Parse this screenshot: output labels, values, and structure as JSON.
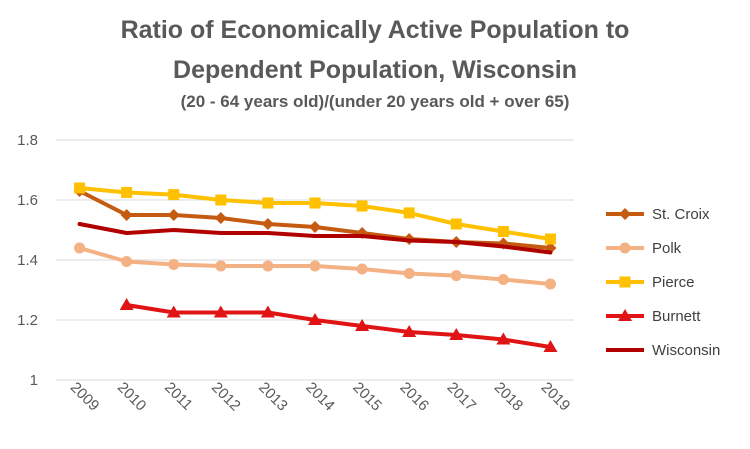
{
  "chart_data": {
    "type": "line",
    "title": "Ratio of Economically Active Population to",
    "title_line2": "Dependent Population, Wisconsin",
    "subtitle": "(20 - 64 years old)/(under 20 years old + over 65)",
    "xlabel": "",
    "ylabel": "",
    "ylim": [
      1,
      1.8
    ],
    "yticks": [
      "1",
      "1.2",
      "1.4",
      "1.6",
      "1.8"
    ],
    "grid": true,
    "legend_position": "right",
    "categories": [
      "2009",
      "2010",
      "2011",
      "2012",
      "2013",
      "2014",
      "2015",
      "2016",
      "2017",
      "2018",
      "2019"
    ],
    "series": [
      {
        "name": "St. Croix",
        "color": "#C55A11",
        "marker": "diamond",
        "values": [
          1.63,
          1.55,
          1.55,
          1.54,
          1.52,
          1.51,
          1.49,
          1.47,
          1.46,
          1.455,
          1.44
        ]
      },
      {
        "name": "Polk",
        "color": "#F4B183",
        "marker": "circle",
        "values": [
          1.44,
          1.395,
          1.385,
          1.38,
          1.38,
          1.38,
          1.37,
          1.355,
          1.348,
          1.335,
          1.32
        ]
      },
      {
        "name": "Pierce",
        "color": "#FFC000",
        "marker": "square",
        "values": [
          1.64,
          1.625,
          1.618,
          1.6,
          1.59,
          1.59,
          1.58,
          1.557,
          1.52,
          1.495,
          1.47
        ]
      },
      {
        "name": "Burnett",
        "color": "#E01414",
        "marker": "triangle",
        "values": [
          null,
          1.25,
          1.225,
          1.225,
          1.225,
          1.2,
          1.18,
          1.16,
          1.15,
          1.135,
          1.11
        ]
      },
      {
        "name": "Wisconsin",
        "color": "#B00000",
        "marker": "none",
        "values": [
          1.52,
          1.49,
          1.5,
          1.49,
          1.49,
          1.48,
          1.48,
          1.465,
          1.46,
          1.445,
          1.425
        ]
      }
    ]
  }
}
